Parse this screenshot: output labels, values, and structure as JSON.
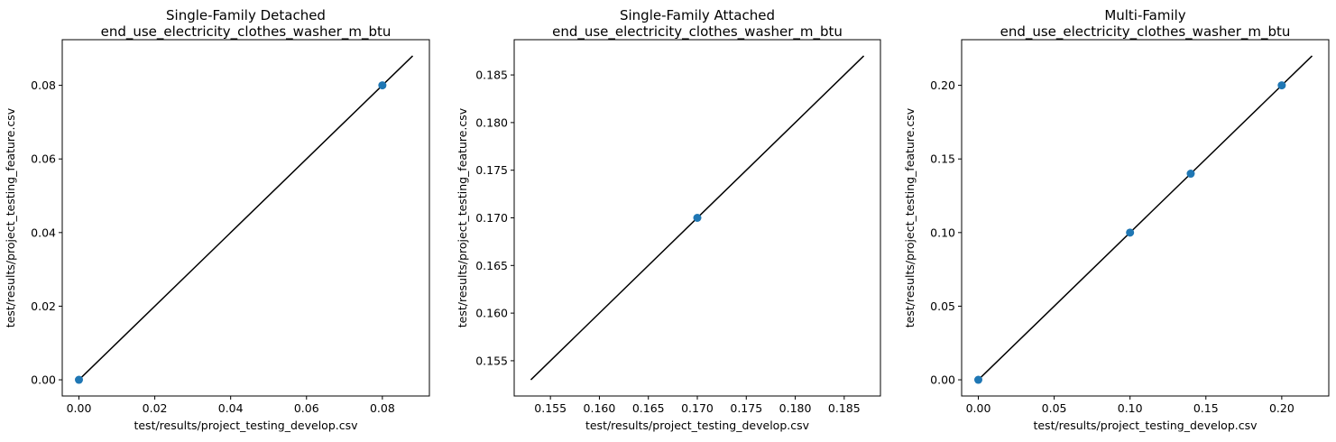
{
  "chart_data": [
    {
      "type": "scatter",
      "title": [
        "Single-Family Detached",
        "end_use_electricity_clothes_washer_m_btu"
      ],
      "xlabel": "test/results/project_testing_develop.csv",
      "ylabel": "test/results/project_testing_feature.csv",
      "xlim": [
        -0.0044,
        0.0924
      ],
      "ylim": [
        -0.0044,
        0.0924
      ],
      "xticks": [
        "0.00",
        "0.02",
        "0.04",
        "0.06",
        "0.08"
      ],
      "yticks": [
        "0.00",
        "0.02",
        "0.04",
        "0.06",
        "0.08"
      ],
      "tick_values": [
        0,
        0.02,
        0.04,
        0.06,
        0.08
      ],
      "points": {
        "x": [
          0,
          0.08
        ],
        "y": [
          0,
          0.08
        ]
      },
      "reference_line": {
        "from": [
          0,
          0
        ],
        "to": [
          0.088,
          0.088
        ]
      },
      "marker_color": "#1f77b4",
      "line_color": "#000000"
    },
    {
      "type": "scatter",
      "title": [
        "Single-Family Attached",
        "end_use_electricity_clothes_washer_m_btu"
      ],
      "xlabel": "test/results/project_testing_develop.csv",
      "ylabel": "test/results/project_testing_feature.csv",
      "xlim": [
        0.1513,
        0.1887
      ],
      "ylim": [
        0.1513,
        0.1887
      ],
      "xticks": [
        "0.155",
        "0.160",
        "0.165",
        "0.170",
        "0.175",
        "0.180",
        "0.185"
      ],
      "yticks": [
        "0.155",
        "0.160",
        "0.165",
        "0.170",
        "0.175",
        "0.180",
        "0.185"
      ],
      "tick_values": [
        0.155,
        0.16,
        0.165,
        0.17,
        0.175,
        0.18,
        0.185
      ],
      "points": {
        "x": [
          0.17
        ],
        "y": [
          0.17
        ]
      },
      "reference_line": {
        "from": [
          0.153,
          0.153
        ],
        "to": [
          0.187,
          0.187
        ]
      },
      "marker_color": "#1f77b4",
      "line_color": "#000000"
    },
    {
      "type": "scatter",
      "title": [
        "Multi-Family",
        "end_use_electricity_clothes_washer_m_btu"
      ],
      "xlabel": "test/results/project_testing_develop.csv",
      "ylabel": "test/results/project_testing_feature.csv",
      "xlim": [
        -0.011,
        0.231
      ],
      "ylim": [
        -0.011,
        0.231
      ],
      "xticks": [
        "0.00",
        "0.05",
        "0.10",
        "0.15",
        "0.20"
      ],
      "yticks": [
        "0.00",
        "0.05",
        "0.10",
        "0.15",
        "0.20"
      ],
      "tick_values": [
        0,
        0.05,
        0.1,
        0.15,
        0.2
      ],
      "points": {
        "x": [
          0,
          0.1,
          0.14,
          0.2
        ],
        "y": [
          0,
          0.1,
          0.14,
          0.2
        ]
      },
      "reference_line": {
        "from": [
          0,
          0
        ],
        "to": [
          0.22,
          0.22
        ]
      },
      "marker_color": "#1f77b4",
      "line_color": "#000000"
    }
  ]
}
